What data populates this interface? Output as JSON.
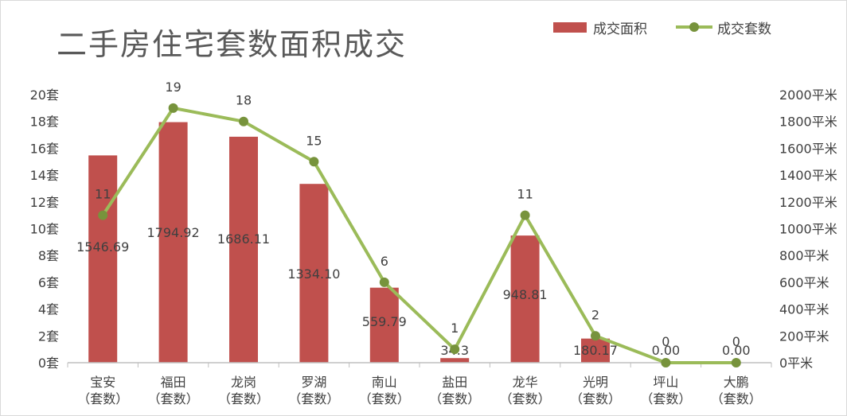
{
  "chart_data": {
    "type": "bar",
    "title": "二手房住宅套数面积成交",
    "categories": [
      "宝安\n（套数）",
      "福田\n（套数）",
      "龙岗\n（套数）",
      "罗湖\n（套数）",
      "南山\n（套数）",
      "盐田\n（套数）",
      "龙华\n（套数）",
      "光明\n（套数）",
      "坪山\n（套数）",
      "大鹏\n（套数）"
    ],
    "series": [
      {
        "name": "成交面积",
        "type": "bar",
        "axis": "right",
        "color": "#c0504d",
        "values": [
          1546.69,
          1794.92,
          1686.11,
          1334.1,
          559.79,
          34.3,
          948.81,
          180.17,
          0.0,
          0.0
        ],
        "labels": [
          "1546.69",
          "1794.92",
          "1686.11",
          "1334.10",
          "559.79",
          "34.3",
          "948.81",
          "180.17",
          "0.00",
          "0.00"
        ]
      },
      {
        "name": "成交套数",
        "type": "line",
        "axis": "left",
        "color": "#9bbb59",
        "marker_color": "#77933c",
        "values": [
          11,
          19,
          18,
          15,
          6,
          1,
          11,
          2,
          0,
          0
        ],
        "labels": [
          "11",
          "19",
          "18",
          "15",
          "6",
          "1",
          "11",
          "2",
          "0",
          "0"
        ]
      }
    ],
    "y_left": {
      "ylim": [
        0,
        20
      ],
      "ticks": [
        "0套",
        "2套",
        "4套",
        "6套",
        "8套",
        "10套",
        "12套",
        "14套",
        "16套",
        "18套",
        "20套"
      ]
    },
    "y_right": {
      "ylim": [
        0,
        2000
      ],
      "ticks": [
        "0平米",
        "200平米",
        "400平米",
        "600平米",
        "800平米",
        "1000平米",
        "1200平米",
        "1400平米",
        "1600平米",
        "1800平米",
        "2000平米"
      ]
    },
    "legend": "top-right",
    "grid": false
  }
}
